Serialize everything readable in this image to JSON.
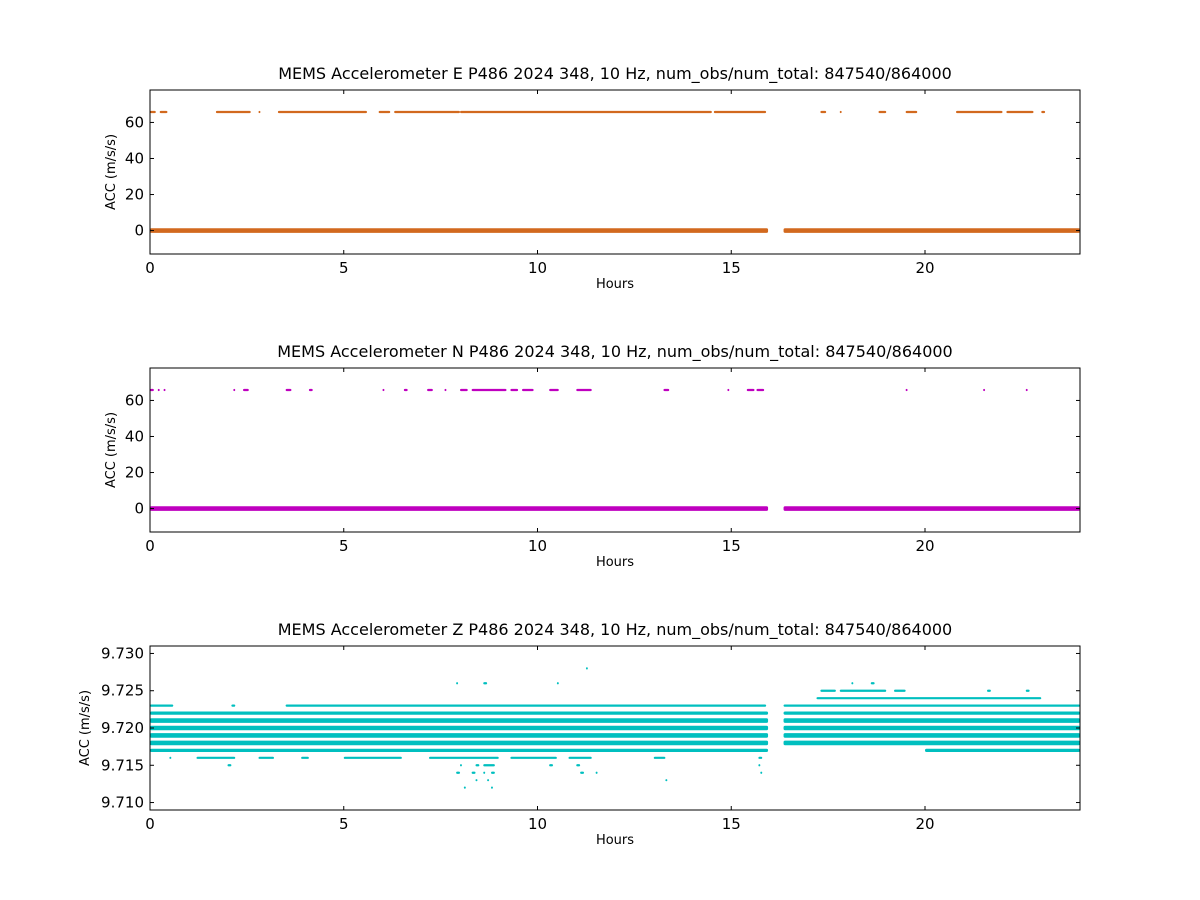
{
  "chart_data": [
    {
      "type": "scatter",
      "title": "MEMS Accelerometer E P486 2024 348, 10 Hz, num_obs/num_total: 847540/864000",
      "xlabel": "Hours",
      "ylabel": "ACC (m/s/s)",
      "xlim": [
        0,
        24
      ],
      "ylim": [
        -13,
        78
      ],
      "xticks": [
        0,
        5,
        10,
        15,
        20
      ],
      "yticks": [
        0,
        20,
        40,
        60
      ],
      "color": "#d2691e",
      "grid": false,
      "gap": [
        15.95,
        16.35
      ],
      "series": [
        {
          "level": 0,
          "segments": [
            [
              0,
              15.95
            ],
            [
              16.35,
              24
            ]
          ],
          "thickness": "thick"
        },
        {
          "level": 65.8,
          "segments": [
            [
              0,
              0.15
            ],
            [
              0.25,
              0.45
            ],
            [
              1.7,
              2.6
            ],
            [
              2.8,
              2.85
            ],
            [
              3.3,
              5.6
            ],
            [
              5.9,
              6.2
            ],
            [
              6.3,
              8.0
            ],
            [
              8.0,
              14.5
            ],
            [
              14.55,
              15.9
            ],
            [
              17.3,
              17.45
            ],
            [
              17.8,
              17.85
            ],
            [
              18.8,
              19.0
            ],
            [
              19.5,
              19.8
            ],
            [
              20.8,
              22.0
            ],
            [
              22.1,
              22.8
            ],
            [
              23.0,
              23.1
            ]
          ],
          "thickness": "thin"
        }
      ]
    },
    {
      "type": "scatter",
      "title": "MEMS Accelerometer N P486 2024 348, 10 Hz, num_obs/num_total: 847540/864000",
      "xlabel": "Hours",
      "ylabel": "ACC (m/s/s)",
      "xlim": [
        0,
        24
      ],
      "ylim": [
        -13,
        78
      ],
      "xticks": [
        0,
        5,
        10,
        15,
        20
      ],
      "yticks": [
        0,
        20,
        40,
        60
      ],
      "color": "#bf00bf",
      "grid": false,
      "gap": [
        15.95,
        16.35
      ],
      "series": [
        {
          "level": 0,
          "segments": [
            [
              0,
              15.95
            ],
            [
              16.35,
              24
            ]
          ],
          "thickness": "thick"
        },
        {
          "level": 65.8,
          "segments": [
            [
              0,
              0.1
            ],
            [
              0.2,
              0.25
            ],
            [
              0.35,
              0.4
            ],
            [
              2.15,
              2.2
            ],
            [
              2.4,
              2.55
            ],
            [
              3.5,
              3.65
            ],
            [
              4.1,
              4.2
            ],
            [
              6.0,
              6.05
            ],
            [
              6.55,
              6.65
            ],
            [
              7.15,
              7.3
            ],
            [
              7.6,
              7.65
            ],
            [
              8.0,
              8.2
            ],
            [
              8.3,
              9.2
            ],
            [
              9.3,
              9.5
            ],
            [
              9.6,
              9.9
            ],
            [
              10.3,
              10.55
            ],
            [
              11.0,
              11.4
            ],
            [
              13.25,
              13.4
            ],
            [
              14.9,
              14.95
            ],
            [
              15.4,
              15.6
            ],
            [
              15.65,
              15.85
            ],
            [
              19.5,
              19.55
            ],
            [
              21.5,
              21.55
            ],
            [
              22.6,
              22.65
            ]
          ],
          "thickness": "thin"
        }
      ]
    },
    {
      "type": "scatter",
      "title": "MEMS Accelerometer Z P486 2024 348, 10 Hz, num_obs/num_total: 847540/864000",
      "xlabel": "Hours",
      "ylabel": "ACC (m/s/s)",
      "xlim": [
        0,
        24
      ],
      "ylim": [
        9.709,
        9.731
      ],
      "xticks": [
        0,
        5,
        10,
        15,
        20
      ],
      "yticks": [
        9.71,
        9.715,
        9.72,
        9.725,
        9.73
      ],
      "ytick_labels": [
        "9.710",
        "9.715",
        "9.720",
        "9.725",
        "9.730"
      ],
      "color": "#00bfbf",
      "grid": false,
      "gap": [
        15.95,
        16.35
      ],
      "series": [
        {
          "level": 9.723,
          "segments": [
            [
              0,
              0.6
            ],
            [
              2.1,
              2.2
            ],
            [
              3.5,
              15.9
            ],
            [
              16.35,
              24
            ]
          ],
          "thickness": "thin"
        },
        {
          "level": 9.722,
          "segments": [
            [
              0,
              15.95
            ],
            [
              16.35,
              24
            ]
          ],
          "thickness": "medium"
        },
        {
          "level": 9.721,
          "segments": [
            [
              0,
              15.95
            ],
            [
              16.35,
              24
            ]
          ],
          "thickness": "thick"
        },
        {
          "level": 9.72,
          "segments": [
            [
              0,
              15.95
            ],
            [
              16.35,
              24
            ]
          ],
          "thickness": "thick"
        },
        {
          "level": 9.719,
          "segments": [
            [
              0,
              15.95
            ],
            [
              16.35,
              24
            ]
          ],
          "thickness": "thick"
        },
        {
          "level": 9.718,
          "segments": [
            [
              0,
              15.95
            ],
            [
              16.35,
              24
            ]
          ],
          "thickness": "thick"
        },
        {
          "level": 9.717,
          "segments": [
            [
              0,
              15.95
            ],
            [
              20.0,
              24
            ]
          ],
          "thickness": "medium"
        },
        {
          "level": 9.724,
          "segments": [
            [
              17.2,
              23.0
            ]
          ],
          "thickness": "thin"
        },
        {
          "level": 9.725,
          "segments": [
            [
              17.3,
              17.7
            ],
            [
              17.8,
              19.0
            ],
            [
              19.2,
              19.5
            ],
            [
              21.6,
              21.7
            ],
            [
              22.6,
              22.7
            ]
          ],
          "thickness": "thin"
        },
        {
          "level": 9.716,
          "segments": [
            [
              0.5,
              0.55
            ],
            [
              1.2,
              2.2
            ],
            [
              2.8,
              3.2
            ],
            [
              3.9,
              4.1
            ],
            [
              5.0,
              6.5
            ],
            [
              7.2,
              9.0
            ],
            [
              9.3,
              10.5
            ],
            [
              10.8,
              11.4
            ],
            [
              13.0,
              13.3
            ],
            [
              15.7,
              15.8
            ]
          ],
          "thickness": "thin"
        },
        {
          "level": 9.715,
          "segments": [
            [
              2.0,
              2.1
            ],
            [
              8.0,
              8.05
            ],
            [
              8.4,
              8.5
            ],
            [
              8.6,
              8.9
            ],
            [
              10.3,
              10.4
            ],
            [
              11.0,
              11.1
            ],
            [
              15.7,
              15.75
            ]
          ],
          "thickness": "thin"
        },
        {
          "level": 9.714,
          "segments": [
            [
              7.9,
              8.0
            ],
            [
              8.3,
              8.4
            ],
            [
              8.6,
              8.65
            ],
            [
              8.8,
              8.9
            ],
            [
              11.1,
              11.2
            ],
            [
              11.5,
              11.55
            ],
            [
              15.75,
              15.8
            ]
          ],
          "thickness": "thin"
        },
        {
          "level": 9.713,
          "segments": [
            [
              8.4,
              8.45
            ],
            [
              8.7,
              8.75
            ],
            [
              13.3,
              13.35
            ]
          ],
          "thickness": "thin"
        },
        {
          "level": 9.712,
          "segments": [
            [
              8.1,
              8.15
            ],
            [
              8.8,
              8.85
            ]
          ],
          "thickness": "thin"
        },
        {
          "level": 9.726,
          "segments": [
            [
              7.9,
              7.95
            ],
            [
              8.6,
              8.7
            ],
            [
              10.5,
              10.55
            ],
            [
              18.1,
              18.15
            ],
            [
              18.6,
              18.7
            ]
          ],
          "thickness": "thin"
        },
        {
          "level": 9.728,
          "segments": [
            [
              11.25,
              11.3
            ]
          ],
          "thickness": "thin"
        }
      ]
    }
  ]
}
